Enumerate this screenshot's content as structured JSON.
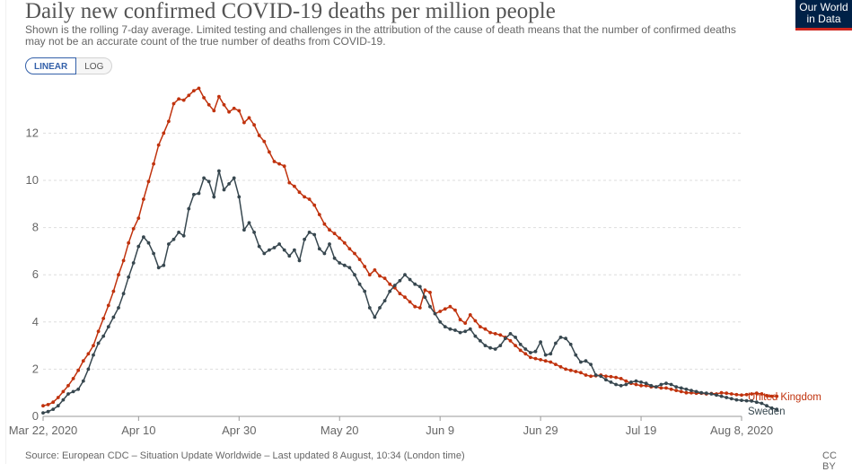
{
  "title": "Daily new confirmed COVID-19 deaths per million people",
  "subtitle": "Shown is the rolling 7-day average. Limited testing and challenges in the attribution of the cause of death means that the number of confirmed deaths may not be an accurate count of the true number of deaths from COVID-19.",
  "logo": {
    "line1": "Our World",
    "line2": "in Data",
    "bg": "#002147",
    "accent": "#ce261e"
  },
  "scale_toggle": {
    "linear": "LINEAR",
    "log": "LOG"
  },
  "footer": {
    "source": "Source: European CDC – Situation Update Worldwide – Last updated 8 August, 10:34 (London time)",
    "license": "CC BY"
  },
  "chart_data": {
    "type": "line",
    "xlabel": "",
    "ylabel": "",
    "ylim": [
      0,
      14
    ],
    "y_ticks": [
      0,
      2,
      4,
      6,
      8,
      10,
      12
    ],
    "x_ticks": [
      "Mar 22, 2020",
      "Apr 10",
      "Apr 30",
      "May 20",
      "Jun 9",
      "Jun 29",
      "Jul 19",
      "Aug 8, 2020"
    ],
    "x_tick_days": [
      0,
      19,
      39,
      59,
      79,
      99,
      119,
      139
    ],
    "grid": "horizontal dashed",
    "legend": "right, end of lines",
    "series": [
      {
        "name": "United Kingdom",
        "color": "#c0320d",
        "values": [
          0.45,
          0.5,
          0.6,
          0.8,
          1.05,
          1.3,
          1.6,
          1.95,
          2.35,
          2.65,
          3.0,
          3.6,
          4.15,
          4.7,
          5.3,
          6.0,
          6.6,
          7.35,
          7.95,
          8.4,
          9.2,
          9.95,
          10.7,
          11.5,
          12.0,
          12.5,
          13.25,
          13.45,
          13.4,
          13.6,
          13.8,
          13.9,
          13.5,
          13.2,
          12.95,
          13.55,
          13.2,
          12.9,
          13.05,
          12.95,
          12.45,
          12.65,
          12.35,
          11.9,
          11.65,
          11.2,
          10.8,
          10.7,
          10.6,
          9.9,
          9.75,
          9.5,
          9.3,
          9.2,
          8.95,
          8.55,
          8.15,
          7.9,
          7.75,
          7.55,
          7.35,
          7.1,
          6.9,
          6.65,
          6.35,
          6.0,
          6.2,
          5.95,
          5.85,
          5.6,
          5.45,
          5.2,
          5.05,
          4.85,
          4.65,
          4.6,
          5.35,
          5.25,
          4.35,
          4.45,
          4.55,
          4.65,
          4.5,
          4.1,
          3.95,
          4.3,
          4.05,
          3.8,
          3.7,
          3.55,
          3.5,
          3.45,
          3.35,
          3.2,
          3.0,
          2.8,
          2.65,
          2.5,
          2.45,
          2.4,
          2.35,
          2.3,
          2.2,
          2.1,
          2.0,
          1.95,
          1.9,
          1.85,
          1.75,
          1.7,
          1.72,
          1.75,
          1.7,
          1.68,
          1.65,
          1.6,
          1.5,
          1.4,
          1.35,
          1.3,
          1.3,
          1.25,
          1.25,
          1.2,
          1.2,
          1.15,
          1.1,
          1.05,
          1.0,
          1.0,
          0.98,
          0.98,
          0.95,
          0.97,
          0.95,
          1.0,
          0.98,
          0.95,
          0.92,
          0.9,
          0.92,
          0.95,
          0.98,
          0.95,
          0.88,
          0.85,
          0.85
        ]
      },
      {
        "name": "Sweden",
        "color": "#37474f",
        "values": [
          0.15,
          0.2,
          0.3,
          0.45,
          0.7,
          0.95,
          1.05,
          1.15,
          1.5,
          2.0,
          2.6,
          3.1,
          3.4,
          3.8,
          4.2,
          4.6,
          5.2,
          5.9,
          6.5,
          7.2,
          7.6,
          7.35,
          6.9,
          6.3,
          6.4,
          7.3,
          7.5,
          7.8,
          7.65,
          8.8,
          9.4,
          9.45,
          10.1,
          9.95,
          9.3,
          10.4,
          9.6,
          9.85,
          10.1,
          9.3,
          7.9,
          8.2,
          7.8,
          7.2,
          6.9,
          7.05,
          7.15,
          7.3,
          7.05,
          6.8,
          7.05,
          6.6,
          7.5,
          7.8,
          7.7,
          7.1,
          6.9,
          7.3,
          6.7,
          6.5,
          6.4,
          6.3,
          6.0,
          5.6,
          5.3,
          4.6,
          4.2,
          4.6,
          4.9,
          5.3,
          5.55,
          5.75,
          6.0,
          5.8,
          5.6,
          5.5,
          5.05,
          4.65,
          4.35,
          4.0,
          3.8,
          3.7,
          3.65,
          3.55,
          3.6,
          3.7,
          3.4,
          3.2,
          3.0,
          2.9,
          2.85,
          3.0,
          3.3,
          3.5,
          3.35,
          3.05,
          2.85,
          2.7,
          2.75,
          3.15,
          2.6,
          2.65,
          3.1,
          3.35,
          3.3,
          3.05,
          2.6,
          2.3,
          2.35,
          2.2,
          1.75,
          1.7,
          1.55,
          1.45,
          1.35,
          1.3,
          1.35,
          1.45,
          1.5,
          1.45,
          1.4,
          1.3,
          1.25,
          1.35,
          1.4,
          1.35,
          1.25,
          1.2,
          1.15,
          1.1,
          1.05,
          1.0,
          0.98,
          0.95,
          0.9,
          0.85,
          0.8,
          0.75,
          0.7,
          0.68,
          0.66,
          0.65,
          0.6,
          0.55,
          0.45,
          0.35,
          0.3
        ]
      }
    ]
  }
}
